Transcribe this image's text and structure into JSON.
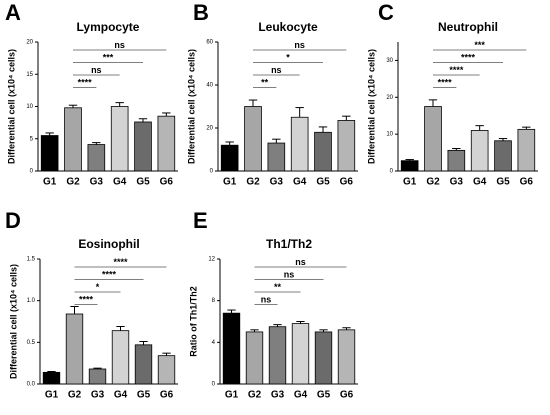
{
  "chart_data": [
    {
      "type": "bar",
      "panel": "A",
      "title": "Lympocyte",
      "y_label": "Differential cell (x10⁴ cells)",
      "categories": [
        "G1",
        "G2",
        "G3",
        "G4",
        "G5",
        "G6"
      ],
      "values": [
        5.5,
        9.8,
        4.1,
        10.0,
        7.6,
        8.5
      ],
      "errors": [
        0.4,
        0.4,
        0.3,
        0.6,
        0.5,
        0.5
      ],
      "colors": [
        "#000000",
        "#a6a6a6",
        "#7f7f7f",
        "#d3d3d3",
        "#6b6b6b",
        "#b5b5b5"
      ],
      "ylim": [
        0,
        20
      ],
      "yticks": [
        0,
        5,
        10,
        15,
        20
      ],
      "significance": [
        "****",
        "ns",
        "***",
        "ns"
      ]
    },
    {
      "type": "bar",
      "panel": "B",
      "title": "Leukocyte",
      "y_label": "Differential cell (x10⁴ cells)",
      "categories": [
        "G1",
        "G2",
        "G3",
        "G4",
        "G5",
        "G6"
      ],
      "values": [
        12,
        30,
        13,
        25,
        18,
        23.5
      ],
      "errors": [
        1.5,
        3,
        1.8,
        4.5,
        2.5,
        2
      ],
      "colors": [
        "#000000",
        "#a6a6a6",
        "#7f7f7f",
        "#d3d3d3",
        "#6b6b6b",
        "#b5b5b5"
      ],
      "ylim": [
        0,
        60
      ],
      "yticks": [
        0,
        20,
        40,
        60
      ],
      "significance": [
        "**",
        "ns",
        "*",
        "ns"
      ]
    },
    {
      "type": "bar",
      "panel": "C",
      "title": "Neutrophil",
      "y_label": "Differential cell (x10⁴ cells)",
      "categories": [
        "G1",
        "G2",
        "G3",
        "G4",
        "G5",
        "G6"
      ],
      "values": [
        2.8,
        17.5,
        5.6,
        11,
        8.2,
        11.3
      ],
      "errors": [
        0.3,
        1.8,
        0.5,
        1.3,
        0.6,
        0.6
      ],
      "colors": [
        "#000000",
        "#a6a6a6",
        "#7f7f7f",
        "#d3d3d3",
        "#6b6b6b",
        "#b5b5b5"
      ],
      "ylim": [
        0,
        35
      ],
      "yticks": [
        0,
        10,
        20,
        30
      ],
      "significance": [
        "****",
        "****",
        "****",
        "***"
      ]
    },
    {
      "type": "bar",
      "panel": "D",
      "title": "Eosinophil",
      "y_label": "Differential cell (x10⁴ cells)",
      "categories": [
        "G1",
        "G2",
        "G3",
        "G4",
        "G5",
        "G6"
      ],
      "values": [
        0.14,
        0.84,
        0.18,
        0.64,
        0.47,
        0.34
      ],
      "errors": [
        0.01,
        0.09,
        0.01,
        0.05,
        0.04,
        0.03
      ],
      "colors": [
        "#000000",
        "#a6a6a6",
        "#7f7f7f",
        "#d3d3d3",
        "#6b6b6b",
        "#b5b5b5"
      ],
      "ylim": [
        0,
        1.5
      ],
      "yticks": [
        {
          "value": 0,
          "label": "0.0"
        },
        {
          "value": 0.5,
          "label": "0.5"
        },
        {
          "value": 1,
          "label": "1.0"
        },
        {
          "value": 1.5,
          "label": "1.5"
        }
      ],
      "significance": [
        "****",
        "*",
        "****",
        "****"
      ]
    },
    {
      "type": "bar",
      "panel": "E",
      "title": "Th1/Th2",
      "y_label": "Ratio of Th1/Th2",
      "categories": [
        "G1",
        "G2",
        "G3",
        "G4",
        "G5",
        "G6"
      ],
      "values": [
        6.8,
        5.0,
        5.5,
        5.8,
        5.0,
        5.2
      ],
      "errors": [
        0.3,
        0.2,
        0.2,
        0.2,
        0.2,
        0.2
      ],
      "colors": [
        "#000000",
        "#a6a6a6",
        "#7f7f7f",
        "#d3d3d3",
        "#6b6b6b",
        "#b5b5b5"
      ],
      "ylim": [
        0,
        12
      ],
      "yticks": [
        0,
        4,
        8,
        12
      ],
      "significance": [
        "ns",
        "**",
        "ns",
        "ns"
      ]
    }
  ]
}
